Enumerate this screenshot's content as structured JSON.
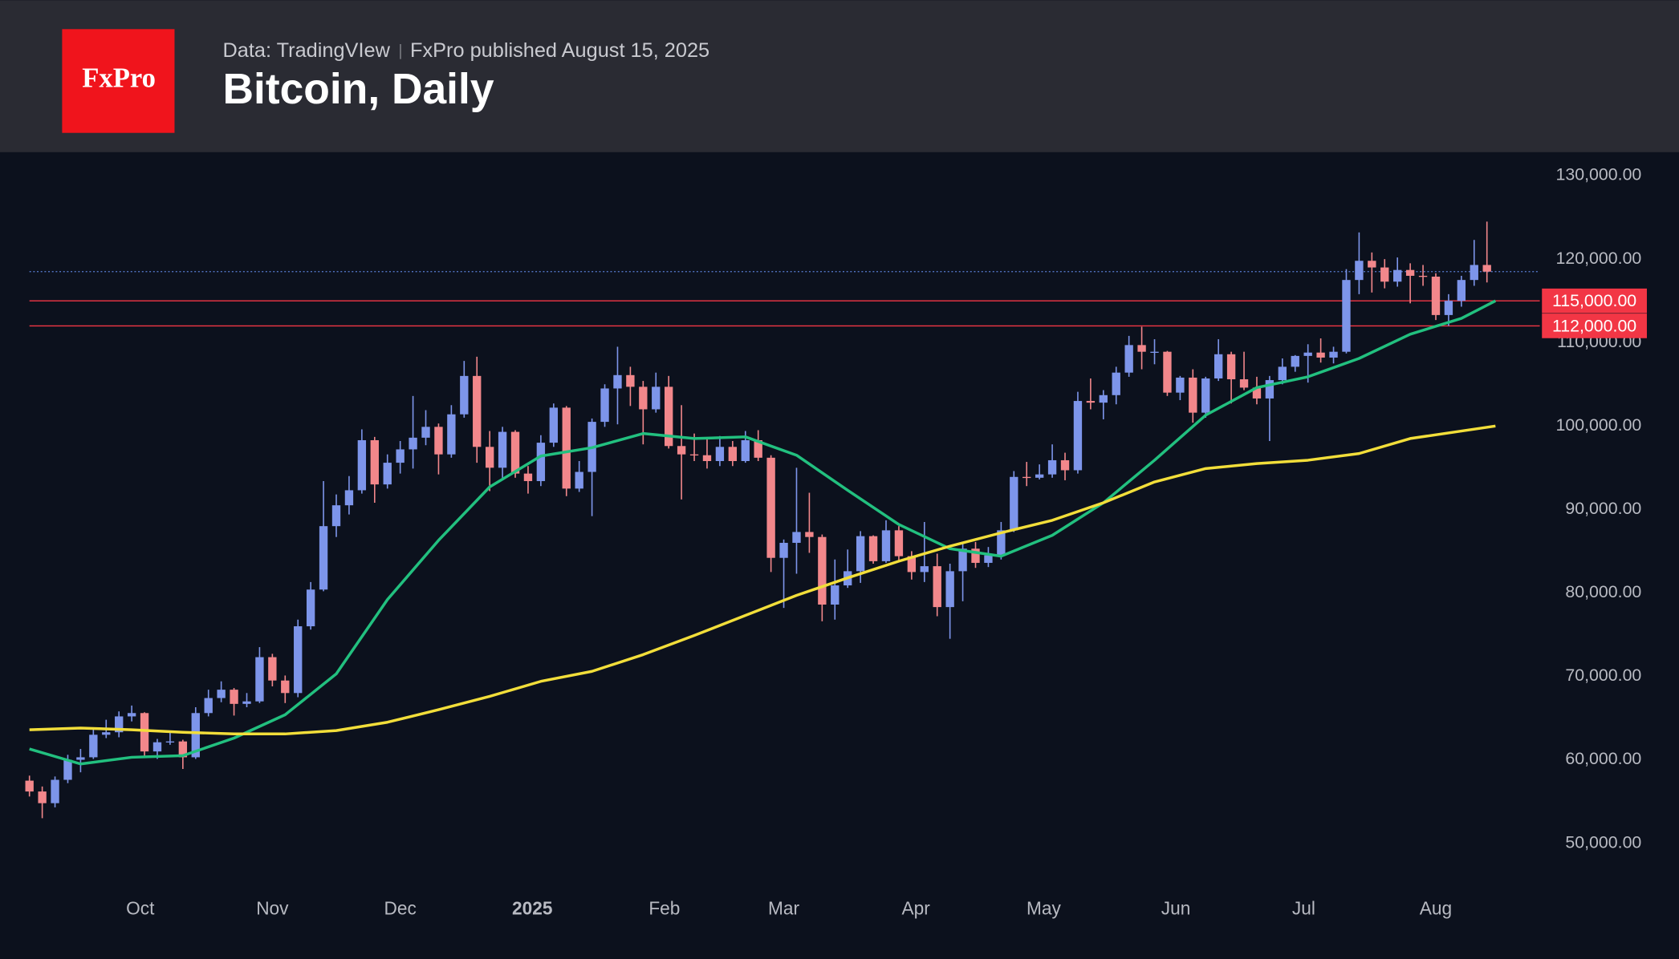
{
  "header": {
    "logo": "FxPro",
    "source": "Data: TradingVIew",
    "published": "FxPro published August 15, 2025",
    "title": "Bitcoin, Daily"
  },
  "chart_data": {
    "type": "candlestick",
    "xlim": [
      0,
      344
    ],
    "ylim": [
      46000,
      133000
    ],
    "xticks": [
      {
        "value": 26,
        "label": "Oct"
      },
      {
        "value": 57,
        "label": "Nov"
      },
      {
        "value": 87,
        "label": "Dec"
      },
      {
        "value": 118,
        "label": "2025",
        "bold": true
      },
      {
        "value": 149,
        "label": "Feb"
      },
      {
        "value": 177,
        "label": "Mar"
      },
      {
        "value": 208,
        "label": "Apr"
      },
      {
        "value": 238,
        "label": "May"
      },
      {
        "value": 269,
        "label": "Jun"
      },
      {
        "value": 299,
        "label": "Jul"
      },
      {
        "value": 330,
        "label": "Aug"
      }
    ],
    "yticks": [
      {
        "value": 50000,
        "label": "50,000.00"
      },
      {
        "value": 60000,
        "label": "60,000.00"
      },
      {
        "value": 70000,
        "label": "70,000.00"
      },
      {
        "value": 80000,
        "label": "80,000.00"
      },
      {
        "value": 90000,
        "label": "90,000.00"
      },
      {
        "value": 100000,
        "label": "100,000.00"
      },
      {
        "value": 110000,
        "label": "110,000.00"
      },
      {
        "value": 120000,
        "label": "120,000.00"
      },
      {
        "value": 130000,
        "label": "130,000.00"
      }
    ],
    "last_price_line": true,
    "last_price_color": "#5a7fd6",
    "levels": [
      {
        "value": 115000,
        "label": "115,000.00",
        "color": "#f23645"
      },
      {
        "value": 112000,
        "label": "112,000.00",
        "color": "#f23645"
      }
    ],
    "series": [
      {
        "type": "candlestick",
        "up_color": "#7d95ea",
        "down_color": "#f2878b",
        "x": [
          0,
          3,
          6,
          9,
          12,
          15,
          18,
          21,
          24,
          27,
          30,
          33,
          36,
          39,
          42,
          45,
          48,
          51,
          54,
          57,
          60,
          63,
          66,
          69,
          72,
          75,
          78,
          81,
          84,
          87,
          90,
          93,
          96,
          99,
          102,
          105,
          108,
          111,
          114,
          117,
          120,
          123,
          126,
          129,
          132,
          135,
          138,
          141,
          144,
          147,
          150,
          153,
          156,
          159,
          162,
          165,
          168,
          171,
          174,
          177,
          180,
          183,
          186,
          189,
          192,
          195,
          198,
          201,
          204,
          207,
          210,
          213,
          216,
          219,
          222,
          225,
          228,
          231,
          234,
          237,
          240,
          243,
          246,
          249,
          252,
          255,
          258,
          261,
          264,
          267,
          270,
          273,
          276,
          279,
          282,
          285,
          288,
          291,
          294,
          297,
          300,
          303,
          306,
          309,
          312,
          315,
          318,
          321,
          324,
          327,
          330,
          333,
          336,
          339,
          342
        ],
        "ohlc": [
          [
            57500,
            58100,
            55600,
            56200
          ],
          [
            56200,
            56800,
            53000,
            54800
          ],
          [
            54800,
            58000,
            54300,
            57600
          ],
          [
            57600,
            60600,
            57200,
            60000
          ],
          [
            60000,
            61300,
            58500,
            60300
          ],
          [
            60300,
            63800,
            60100,
            63000
          ],
          [
            63000,
            64800,
            62600,
            63300
          ],
          [
            63300,
            65800,
            62700,
            65200
          ],
          [
            65200,
            66500,
            64600,
            65600
          ],
          [
            65600,
            65700,
            60200,
            61000
          ],
          [
            61000,
            62500,
            60100,
            62100
          ],
          [
            62100,
            63300,
            61800,
            62200
          ],
          [
            62200,
            62400,
            58900,
            60300
          ],
          [
            60300,
            66300,
            60100,
            65600
          ],
          [
            65600,
            68400,
            65200,
            67400
          ],
          [
            67400,
            69400,
            66900,
            68400
          ],
          [
            68400,
            68600,
            65300,
            66700
          ],
          [
            66700,
            68000,
            66300,
            67000
          ],
          [
            67000,
            73500,
            66800,
            72300
          ],
          [
            72300,
            72700,
            68800,
            69500
          ],
          [
            69500,
            70100,
            66800,
            68000
          ],
          [
            68000,
            76800,
            67500,
            76000
          ],
          [
            76000,
            81300,
            75600,
            80400
          ],
          [
            80400,
            93400,
            80200,
            88000
          ],
          [
            88000,
            91800,
            86700,
            90500
          ],
          [
            90500,
            94000,
            89400,
            92300
          ],
          [
            92300,
            99600,
            91900,
            98300
          ],
          [
            98300,
            98700,
            90800,
            93000
          ],
          [
            93000,
            96600,
            92500,
            95600
          ],
          [
            95600,
            98200,
            94300,
            97200
          ],
          [
            97200,
            103600,
            94900,
            98600
          ],
          [
            98600,
            101900,
            97700,
            99900
          ],
          [
            99900,
            100300,
            94200,
            96600
          ],
          [
            96600,
            102500,
            96200,
            101400
          ],
          [
            101400,
            107800,
            101000,
            106000
          ],
          [
            106000,
            108300,
            95600,
            97500
          ],
          [
            97500,
            99400,
            92200,
            95000
          ],
          [
            95000,
            99900,
            93600,
            99300
          ],
          [
            99300,
            99500,
            93800,
            94300
          ],
          [
            94300,
            95200,
            91900,
            93400
          ],
          [
            93400,
            98900,
            92800,
            98000
          ],
          [
            98000,
            102700,
            97500,
            102200
          ],
          [
            102200,
            102400,
            91600,
            92500
          ],
          [
            92500,
            95800,
            92100,
            94500
          ],
          [
            94500,
            100900,
            89200,
            100500
          ],
          [
            100500,
            105000,
            99900,
            104500
          ],
          [
            104500,
            109500,
            100200,
            106100
          ],
          [
            106100,
            107100,
            102400,
            104700
          ],
          [
            104700,
            105400,
            97800,
            102000
          ],
          [
            102000,
            106400,
            101600,
            104700
          ],
          [
            104700,
            106000,
            97300,
            97600
          ],
          [
            97600,
            102500,
            91200,
            96600
          ],
          [
            96600,
            99100,
            95800,
            96500
          ],
          [
            96500,
            98500,
            94900,
            95800
          ],
          [
            95800,
            98800,
            95200,
            97500
          ],
          [
            97500,
            98200,
            95200,
            95800
          ],
          [
            95800,
            99400,
            95600,
            98300
          ],
          [
            98300,
            99500,
            95800,
            96200
          ],
          [
            96200,
            96500,
            82500,
            84200
          ],
          [
            84200,
            86400,
            78200,
            86000
          ],
          [
            86000,
            95000,
            82300,
            87300
          ],
          [
            87300,
            92000,
            84800,
            86700
          ],
          [
            86700,
            87000,
            76600,
            78600
          ],
          [
            78600,
            84000,
            76800,
            80900
          ],
          [
            80900,
            85200,
            80600,
            82600
          ],
          [
            82600,
            87400,
            81200,
            86800
          ],
          [
            86800,
            86900,
            83500,
            83800
          ],
          [
            83800,
            88700,
            83600,
            87500
          ],
          [
            87500,
            88000,
            83900,
            84400
          ],
          [
            84400,
            85000,
            81600,
            82500
          ],
          [
            82500,
            88500,
            81300,
            83200
          ],
          [
            83200,
            84700,
            77200,
            78300
          ],
          [
            78300,
            83500,
            74500,
            82600
          ],
          [
            82600,
            86000,
            79000,
            85300
          ],
          [
            85300,
            86100,
            83000,
            83600
          ],
          [
            83600,
            85500,
            83100,
            84500
          ],
          [
            84500,
            88500,
            84000,
            87500
          ],
          [
            87500,
            94600,
            87300,
            93900
          ],
          [
            93900,
            95700,
            92800,
            93800
          ],
          [
            93800,
            95400,
            93600,
            94200
          ],
          [
            94200,
            97800,
            93800,
            95900
          ],
          [
            95900,
            96800,
            93500,
            94700
          ],
          [
            94700,
            104100,
            94300,
            103000
          ],
          [
            103000,
            105700,
            102000,
            102800
          ],
          [
            102800,
            104300,
            100800,
            103700
          ],
          [
            103700,
            107100,
            102600,
            106400
          ],
          [
            106400,
            110800,
            105900,
            109700
          ],
          [
            109700,
            111900,
            106800,
            108900
          ],
          [
            108900,
            110400,
            107400,
            108900
          ],
          [
            108900,
            109000,
            103600,
            104000
          ],
          [
            104000,
            106000,
            103100,
            105800
          ],
          [
            105800,
            106800,
            100400,
            101600
          ],
          [
            101600,
            105900,
            101000,
            105700
          ],
          [
            105700,
            110400,
            105400,
            108600
          ],
          [
            108600,
            108900,
            102700,
            105600
          ],
          [
            105600,
            108900,
            104300,
            104600
          ],
          [
            104600,
            105900,
            102600,
            103300
          ],
          [
            103300,
            106000,
            98200,
            105500
          ],
          [
            105500,
            108100,
            105000,
            107100
          ],
          [
            107100,
            108500,
            106500,
            108400
          ],
          [
            108400,
            109800,
            105200,
            108800
          ],
          [
            108800,
            110500,
            107600,
            108200
          ],
          [
            108200,
            109500,
            107500,
            108900
          ],
          [
            108900,
            118800,
            108700,
            117500
          ],
          [
            117500,
            123200,
            115800,
            119800
          ],
          [
            119800,
            120800,
            116000,
            119000
          ],
          [
            119000,
            120000,
            116500,
            117300
          ],
          [
            117300,
            120200,
            116700,
            118700
          ],
          [
            118700,
            119500,
            114700,
            118000
          ],
          [
            118000,
            119300,
            116800,
            117900
          ],
          [
            117900,
            118300,
            112700,
            113300
          ],
          [
            113300,
            115800,
            112000,
            115000
          ],
          [
            115000,
            118000,
            114300,
            117500
          ],
          [
            117500,
            122300,
            116800,
            119300
          ],
          [
            119300,
            124500,
            117200,
            118500
          ]
        ]
      },
      {
        "type": "line",
        "color": "#22c07f",
        "x": [
          0,
          12,
          24,
          36,
          48,
          60,
          72,
          84,
          96,
          108,
          120,
          132,
          144,
          156,
          168,
          180,
          192,
          204,
          216,
          228,
          240,
          252,
          264,
          276,
          288,
          300,
          312,
          324,
          336,
          344
        ],
        "values": [
          61300,
          59500,
          60300,
          60500,
          62600,
          65400,
          70300,
          79200,
          86300,
          92700,
          96400,
          97400,
          99100,
          98500,
          98700,
          96500,
          92300,
          88200,
          85300,
          84400,
          86900,
          90800,
          95900,
          101300,
          104600,
          105900,
          108100,
          111000,
          112900,
          115000
        ]
      },
      {
        "type": "line",
        "color": "#f2de3a",
        "x": [
          0,
          12,
          24,
          36,
          48,
          60,
          72,
          84,
          96,
          108,
          120,
          132,
          144,
          156,
          168,
          180,
          192,
          204,
          216,
          228,
          240,
          252,
          264,
          276,
          288,
          300,
          312,
          324,
          336,
          344
        ],
        "values": [
          63600,
          63800,
          63600,
          63300,
          63100,
          63100,
          63500,
          64500,
          66000,
          67600,
          69400,
          70600,
          72600,
          74900,
          77300,
          79700,
          81800,
          83800,
          85600,
          87200,
          88700,
          90800,
          93300,
          94900,
          95500,
          95900,
          96700,
          98500,
          99400,
          100000
        ]
      }
    ]
  }
}
